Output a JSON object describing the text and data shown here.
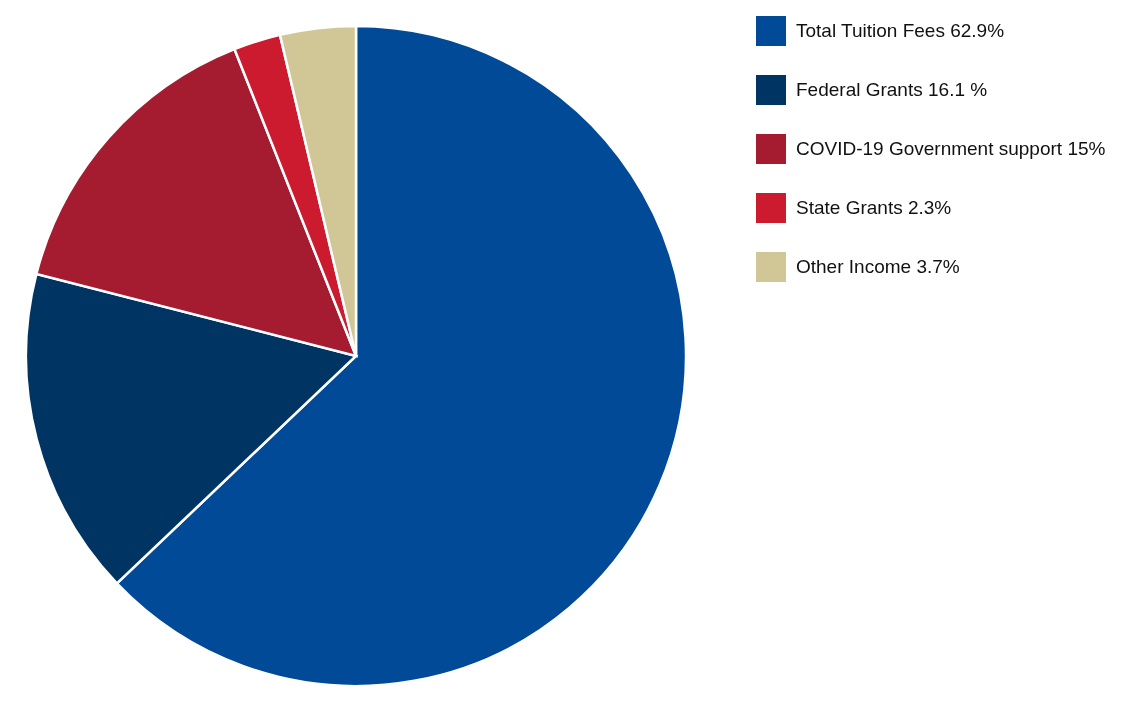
{
  "chart_data": {
    "type": "pie",
    "categories": [
      "Total Tuition Fees 62.9%",
      "Federal Grants 16.1 %",
      "COVID-19 Government support 15%",
      "State Grants 2.3%",
      "Other Income 3.7%"
    ],
    "values": [
      62.9,
      16.1,
      15,
      2.3,
      3.7
    ],
    "colors": [
      "#004a98",
      "#003462",
      "#a51c30",
      "#cc1a2f",
      "#d1c796"
    ],
    "legend": "right"
  }
}
